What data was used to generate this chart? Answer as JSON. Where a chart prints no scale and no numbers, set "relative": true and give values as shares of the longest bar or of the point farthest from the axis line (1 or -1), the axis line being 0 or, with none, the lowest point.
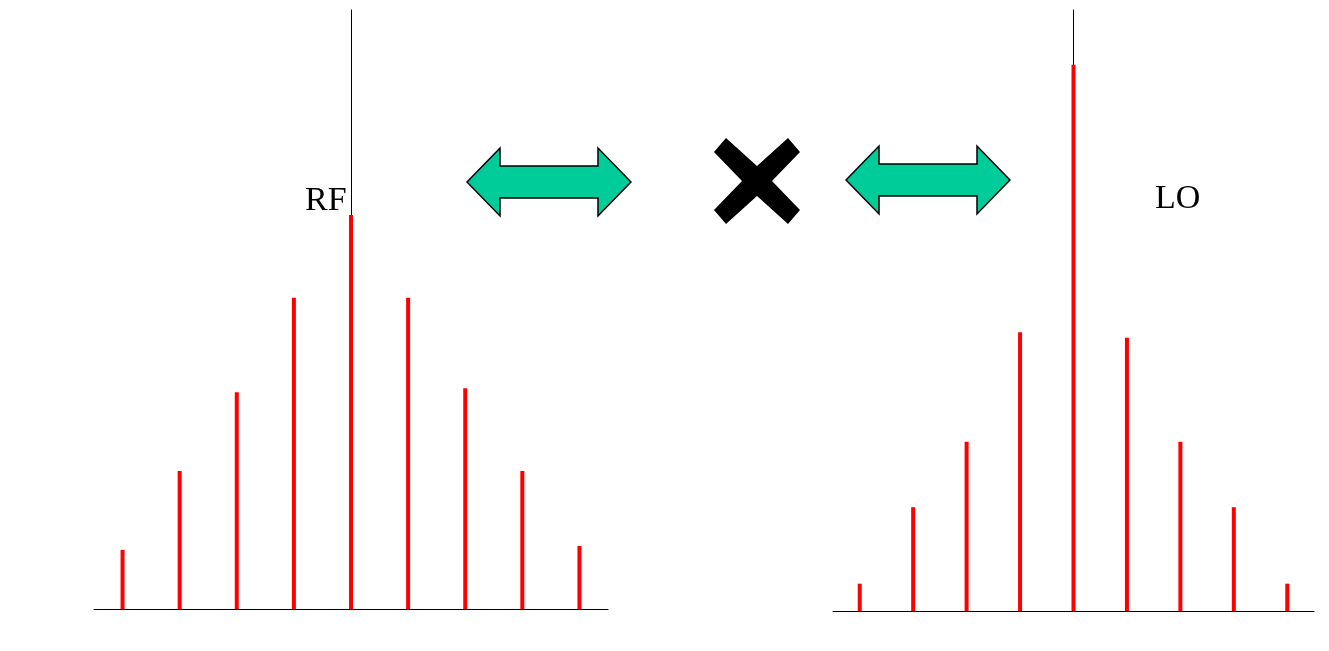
{
  "chart_data": [
    {
      "type": "bar",
      "title": "RF",
      "categories": [
        null,
        null,
        null,
        null,
        null,
        null,
        null,
        null,
        null
      ],
      "values": [
        0.15,
        0.35,
        0.55,
        0.79,
        1,
        0.79,
        0.56,
        0.35,
        0.16
      ],
      "color": "#ff0000",
      "relative": true
    },
    {
      "type": "bar",
      "title": "LO",
      "categories": [
        null,
        null,
        null,
        null,
        null,
        null,
        null,
        null,
        null
      ],
      "values": [
        0.05,
        0.19,
        0.31,
        0.51,
        1,
        0.5,
        0.31,
        0.19,
        0.05
      ],
      "color": "#ff0000",
      "relative": true
    }
  ]
}
